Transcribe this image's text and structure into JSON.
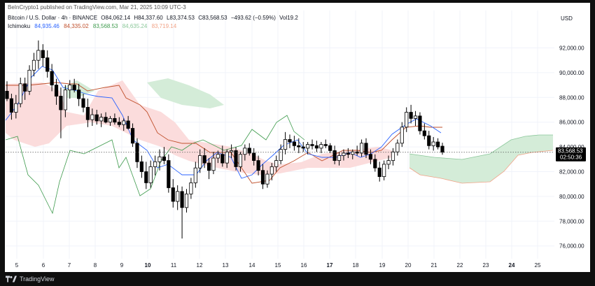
{
  "header": {
    "publish_line": "BeInCrypto1 published on TradingView.com, Mar 21, 2025 10:09 UTC-3",
    "symbol": "Bitcoin / U.S. Dollar · 4h · BINANCE",
    "open": "O84,062.14",
    "high": "H84,337.60",
    "low": "L83,374.53",
    "close": "C83,568.53",
    "change": "−493.62 (−0.59%)",
    "volume": "Vol19.2",
    "currency": "USD"
  },
  "indicator": {
    "name": "Ichimoku",
    "values": [
      "84,935.46",
      "84,335.02",
      "83,568.53",
      "84,635.24",
      "83,719.14"
    ],
    "colors": [
      "#2962ff",
      "#c0502c",
      "#3d9a4c",
      "#8bc79a",
      "#f1a387"
    ]
  },
  "price_label": {
    "price": "83,568.53",
    "countdown": "02:50:36"
  },
  "footer": {
    "brand": "TradingView"
  },
  "colors": {
    "up_candle": "#ffffff",
    "down_candle": "#000000",
    "candle_border": "#000000",
    "conversion_line": "#2962ff",
    "base_line": "#c0502c",
    "lagging_span": "#3d9a4c",
    "cloud_bull": "#d4ecd8",
    "cloud_bear": "#fbdcdc"
  },
  "chart_data": {
    "type": "candlestick",
    "y_axis_ticks": [
      "92,000.00",
      "90,000.00",
      "88,000.00",
      "86,000.00",
      "84,000.00",
      "82,000.00",
      "80,000.00",
      "78,000.00",
      "76,000.00"
    ],
    "x_axis_ticks": [
      "5",
      "6",
      "7",
      "8",
      "9",
      "10",
      "11",
      "12",
      "13",
      "14",
      "15",
      "16",
      "17",
      "18",
      "19",
      "20",
      "21",
      "22",
      "23",
      "24",
      "25"
    ],
    "ylim": [
      75000,
      94000
    ],
    "candles": [
      [
        4.9,
        88.5,
        89.3,
        87.7,
        87.9
      ],
      [
        5.05,
        87.9,
        88.3,
        86.2,
        86.8
      ],
      [
        5.2,
        86.8,
        88.2,
        86.3,
        87.5
      ],
      [
        5.35,
        87.5,
        89.6,
        87.2,
        89.1
      ],
      [
        5.5,
        89.1,
        89.6,
        87.8,
        88.5
      ],
      [
        5.65,
        88.5,
        90.6,
        88.2,
        90.2
      ],
      [
        5.8,
        90.2,
        91.6,
        89.7,
        91.0
      ],
      [
        5.95,
        91.0,
        92.6,
        90.3,
        91.8
      ],
      [
        6.1,
        91.8,
        92.3,
        90.5,
        91.2
      ],
      [
        6.25,
        91.2,
        91.8,
        89.6,
        90.1
      ],
      [
        6.4,
        90.1,
        90.7,
        88.5,
        89.0
      ],
      [
        6.55,
        89.0,
        89.5,
        87.4,
        88.1
      ],
      [
        6.7,
        88.1,
        88.8,
        84.7,
        87.0
      ],
      [
        6.85,
        87.0,
        89.0,
        86.4,
        88.6
      ],
      [
        7.0,
        88.6,
        89.4,
        87.9,
        89.0
      ],
      [
        7.15,
        89.0,
        89.5,
        88.4,
        88.6
      ],
      [
        7.3,
        88.6,
        89.1,
        87.3,
        87.9
      ],
      [
        7.45,
        87.9,
        88.3,
        86.8,
        87.2
      ],
      [
        7.6,
        87.2,
        87.9,
        85.6,
        86.2
      ],
      [
        7.75,
        86.2,
        87.1,
        85.7,
        86.6
      ],
      [
        7.9,
        86.6,
        87.0,
        85.8,
        86.1
      ],
      [
        8.05,
        86.1,
        86.7,
        85.6,
        86.4
      ],
      [
        8.2,
        86.4,
        86.8,
        85.9,
        86.0
      ],
      [
        8.35,
        86.0,
        86.5,
        85.7,
        86.3
      ],
      [
        8.5,
        86.3,
        86.7,
        85.8,
        86.0
      ],
      [
        8.65,
        86.0,
        86.4,
        85.6,
        85.8
      ],
      [
        8.8,
        85.8,
        86.3,
        85.3,
        86.1
      ],
      [
        8.95,
        86.1,
        86.5,
        85.4,
        85.5
      ],
      [
        9.1,
        85.5,
        85.9,
        84.0,
        84.3
      ],
      [
        9.25,
        84.3,
        84.7,
        82.3,
        82.8
      ],
      [
        9.4,
        82.8,
        83.3,
        81.5,
        82.0
      ],
      [
        9.55,
        82.0,
        82.8,
        80.6,
        81.1
      ],
      [
        9.7,
        81.1,
        82.9,
        80.7,
        82.4
      ],
      [
        9.85,
        82.4,
        83.3,
        81.7,
        82.8
      ],
      [
        10.0,
        82.8,
        83.8,
        82.1,
        83.2
      ],
      [
        10.15,
        83.2,
        84.0,
        82.6,
        82.9
      ],
      [
        10.3,
        82.9,
        83.4,
        80.3,
        80.7
      ],
      [
        10.45,
        80.7,
        81.4,
        79.1,
        79.6
      ],
      [
        10.6,
        79.6,
        80.9,
        78.9,
        80.4
      ],
      [
        10.75,
        80.4,
        80.8,
        76.6,
        79.1
      ],
      [
        10.9,
        79.1,
        80.6,
        78.7,
        80.2
      ],
      [
        11.05,
        80.2,
        81.5,
        79.8,
        81.1
      ],
      [
        11.2,
        81.1,
        82.8,
        80.7,
        82.3
      ],
      [
        11.35,
        82.3,
        83.8,
        81.9,
        83.3
      ],
      [
        11.5,
        83.3,
        83.9,
        82.3,
        82.7
      ],
      [
        11.65,
        82.7,
        83.1,
        81.4,
        82.1
      ],
      [
        11.8,
        82.1,
        83.6,
        81.8,
        83.1
      ],
      [
        11.95,
        83.1,
        83.7,
        82.7,
        83.4
      ],
      [
        12.1,
        83.4,
        84.1,
        82.4,
        82.7
      ],
      [
        12.25,
        82.7,
        83.8,
        82.3,
        83.6
      ],
      [
        12.4,
        83.6,
        84.2,
        83.1,
        83.7
      ],
      [
        12.55,
        83.7,
        84.0,
        82.1,
        82.4
      ],
      [
        12.7,
        82.4,
        83.6,
        82.0,
        83.4
      ],
      [
        12.85,
        83.4,
        84.2,
        82.9,
        83.9
      ],
      [
        13.0,
        83.9,
        84.3,
        83.3,
        83.5
      ],
      [
        13.15,
        83.5,
        83.9,
        82.5,
        82.9
      ],
      [
        13.3,
        82.9,
        83.3,
        81.7,
        82.1
      ],
      [
        13.45,
        82.1,
        82.6,
        80.6,
        81.0
      ],
      [
        13.6,
        81.0,
        82.1,
        80.7,
        81.8
      ],
      [
        13.75,
        81.8,
        82.7,
        81.3,
        82.4
      ],
      [
        13.9,
        82.4,
        83.3,
        82.0,
        82.9
      ],
      [
        14.05,
        82.9,
        84.2,
        82.6,
        83.8
      ],
      [
        14.2,
        83.8,
        85.2,
        83.4,
        84.6
      ],
      [
        14.35,
        84.6,
        85.0,
        83.9,
        84.4
      ],
      [
        14.5,
        84.4,
        84.9,
        83.7,
        84.1
      ],
      [
        14.65,
        84.1,
        84.7,
        83.5,
        84.0
      ],
      [
        14.8,
        84.0,
        84.4,
        83.6,
        83.9
      ],
      [
        14.95,
        83.9,
        84.4,
        83.4,
        84.2
      ],
      [
        15.1,
        84.2,
        84.6,
        83.8,
        84.1
      ],
      [
        15.25,
        84.1,
        84.5,
        83.6,
        83.9
      ],
      [
        15.4,
        83.9,
        84.4,
        83.5,
        84.2
      ],
      [
        15.55,
        84.2,
        84.6,
        83.9,
        84.1
      ],
      [
        15.7,
        84.1,
        84.3,
        83.5,
        83.7
      ],
      [
        15.85,
        83.7,
        84.1,
        82.6,
        82.9
      ],
      [
        16.0,
        82.9,
        83.6,
        82.5,
        83.3
      ],
      [
        16.15,
        83.3,
        83.8,
        82.9,
        83.5
      ],
      [
        16.3,
        83.5,
        83.9,
        83.1,
        83.4
      ],
      [
        16.45,
        83.4,
        83.8,
        83.0,
        83.6
      ],
      [
        16.6,
        83.6,
        84.1,
        83.3,
        83.5
      ],
      [
        16.75,
        83.5,
        84.6,
        83.2,
        84.3
      ],
      [
        16.9,
        84.3,
        84.7,
        83.1,
        83.4
      ],
      [
        17.05,
        83.4,
        83.8,
        82.6,
        83.0
      ],
      [
        17.2,
        83.0,
        83.4,
        82.0,
        82.3
      ],
      [
        17.35,
        82.3,
        82.8,
        81.2,
        81.6
      ],
      [
        17.5,
        81.6,
        82.9,
        81.3,
        82.6
      ],
      [
        17.65,
        82.6,
        83.3,
        82.2,
        82.9
      ],
      [
        17.8,
        82.9,
        83.9,
        82.5,
        83.6
      ],
      [
        17.95,
        83.6,
        84.6,
        83.3,
        84.3
      ],
      [
        18.1,
        84.3,
        86.0,
        84.0,
        85.6
      ],
      [
        18.25,
        85.6,
        87.2,
        85.2,
        86.8
      ],
      [
        18.4,
        86.8,
        87.4,
        85.9,
        86.3
      ],
      [
        18.55,
        86.3,
        86.9,
        85.7,
        86.5
      ],
      [
        18.7,
        86.5,
        86.8,
        85.0,
        85.3
      ],
      [
        18.85,
        85.3,
        85.9,
        84.6,
        84.9
      ],
      [
        19.0,
        84.9,
        85.3,
        83.8,
        84.1
      ],
      [
        19.15,
        84.1,
        84.8,
        83.7,
        84.4
      ],
      [
        19.3,
        84.4,
        84.7,
        83.8,
        84.0
      ],
      [
        19.45,
        84.06,
        84.34,
        83.37,
        83.57
      ]
    ],
    "x_day_map": {
      "5": 24,
      "6": 62,
      "7": 99,
      "8": 136,
      "9": 174,
      "10": 211,
      "11": 248,
      "12": 285,
      "13": 322,
      "14": 360,
      "15": 397,
      "16": 434,
      "17": 471,
      "18": 508,
      "19": 546,
      "20": 583,
      "21": 620,
      "22": 657,
      "23": 694,
      "24": 731,
      "25": 768
    }
  }
}
